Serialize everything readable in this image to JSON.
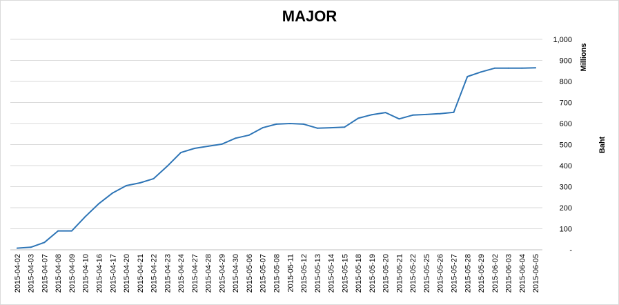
{
  "chart_data": {
    "type": "line",
    "title": "MAJOR",
    "ylabel": "Baht",
    "y_unit": "Millions",
    "ylim": [
      0,
      1000
    ],
    "y_tick_labels": [
      "-",
      "100",
      "200",
      "300",
      "400",
      "500",
      "600",
      "700",
      "800",
      "900",
      "1,000"
    ],
    "y_axis_side": "right",
    "grid": true,
    "line_color": "#2e75b6",
    "x": [
      "2015-04-02",
      "2015-04-03",
      "2015-04-07",
      "2015-04-08",
      "2015-04-09",
      "2015-04-10",
      "2015-04-16",
      "2015-04-17",
      "2015-04-20",
      "2015-04-21",
      "2015-04-22",
      "2015-04-23",
      "2015-04-24",
      "2015-04-27",
      "2015-04-28",
      "2015-04-29",
      "2015-04-30",
      "2015-05-06",
      "2015-05-07",
      "2015-05-08",
      "2015-05-11",
      "2015-05-12",
      "2015-05-13",
      "2015-05-14",
      "2015-05-15",
      "2015-05-18",
      "2015-05-19",
      "2015-05-20",
      "2015-05-21",
      "2015-05-22",
      "2015-05-25",
      "2015-05-26",
      "2015-05-27",
      "2015-05-28",
      "2015-05-29",
      "2015-06-02",
      "2015-06-03",
      "2015-06-04",
      "2015-06-05"
    ],
    "values": [
      8,
      12,
      35,
      90,
      90,
      158,
      220,
      270,
      305,
      318,
      338,
      397,
      462,
      482,
      492,
      502,
      530,
      545,
      580,
      597,
      600,
      597,
      578,
      580,
      583,
      625,
      642,
      652,
      622,
      640,
      643,
      647,
      653,
      823,
      845,
      863,
      863,
      863,
      865
    ]
  }
}
